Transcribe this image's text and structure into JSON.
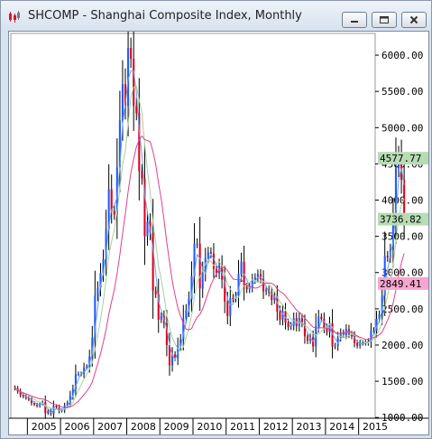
{
  "window": {
    "title": "SHCOMP - Shanghai Composite Index, Monthly",
    "icon": "candlestick-chart-icon",
    "controls": [
      "minimize-icon",
      "restore-icon",
      "close-icon"
    ]
  },
  "chart_data": {
    "type": "candlestick",
    "title": "SHCOMP - Shanghai Composite Index, Monthly",
    "grid": false,
    "up_color": "#1e5bff",
    "down_color": "#e0001b",
    "wick_color": "#000000",
    "ylim": [
      990,
      6300
    ],
    "xlim": [
      "2004-07",
      "2015-07"
    ],
    "y_ticks": [
      "6000.00",
      "5500.00",
      "5000.00",
      "4500.00",
      "4000.00",
      "3500.00",
      "3000.00",
      "2500.00",
      "2000.00",
      "1500.00",
      "1000.00"
    ],
    "x_ticks": [
      "2005",
      "2006",
      "2007",
      "2008",
      "2009",
      "2010",
      "2011",
      "2012",
      "2013",
      "2014",
      "2015"
    ],
    "price_tags": [
      {
        "label": "4577.77",
        "value": 4577.77,
        "color": "#b7dcb4"
      },
      {
        "label": "3736.82",
        "value": 3736.82,
        "color": "#b7dcb4"
      },
      {
        "label": "2849.41",
        "value": 2849.41,
        "color": "#f7a6cf"
      }
    ],
    "averages": [
      {
        "color": "#6da3e0",
        "last": 3736.82
      },
      {
        "color": "#a8cfa0",
        "last": 3700
      },
      {
        "color": "#e23f8c",
        "last": 2849.41
      }
    ],
    "closes": [
      1400,
      1360,
      1310,
      1290,
      1270,
      1250,
      1200,
      1180,
      1160,
      1190,
      1210,
      1060,
      1090,
      1050,
      1160,
      1140,
      1090,
      1100,
      1160,
      1200,
      1300,
      1390,
      1600,
      1600,
      1600,
      1690,
      1700,
      1840,
      2100,
      2680,
      2790,
      2990,
      3180,
      3600,
      4150,
      3850,
      3800,
      4450,
      5100,
      5600,
      5300,
      6100,
      5950,
      5300,
      5200,
      4400,
      4300,
      3500,
      3700,
      3550,
      2750,
      2700,
      2350,
      2400,
      2300,
      2000,
      1720,
      1870,
      1820,
      1990,
      2080,
      2370,
      2480,
      2630,
      2950,
      3400,
      3400,
      2780,
      3000,
      3200,
      3280,
      3260,
      3050,
      2990,
      3100,
      2900,
      2600,
      2400,
      2650,
      2640,
      2680,
      2980,
      3150,
      2800,
      2770,
      2800,
      2900,
      2930,
      2980,
      2910,
      2740,
      2760,
      2720,
      2620,
      2680,
      2460,
      2350,
      2470,
      2310,
      2250,
      2270,
      2370,
      2260,
      2370,
      2300,
      2120,
      2060,
      2110,
      1980,
      2260,
      2390,
      2360,
      2240,
      2180,
      2300,
      1980,
      1990,
      2100,
      2170,
      2140,
      2220,
      2150,
      2120,
      2030,
      1990,
      2030,
      2030,
      2030,
      2050,
      2200,
      2200,
      2360,
      2420,
      2680,
      3230,
      3210,
      3310,
      3750,
      4440,
      4610,
      4280,
      3740
    ]
  }
}
